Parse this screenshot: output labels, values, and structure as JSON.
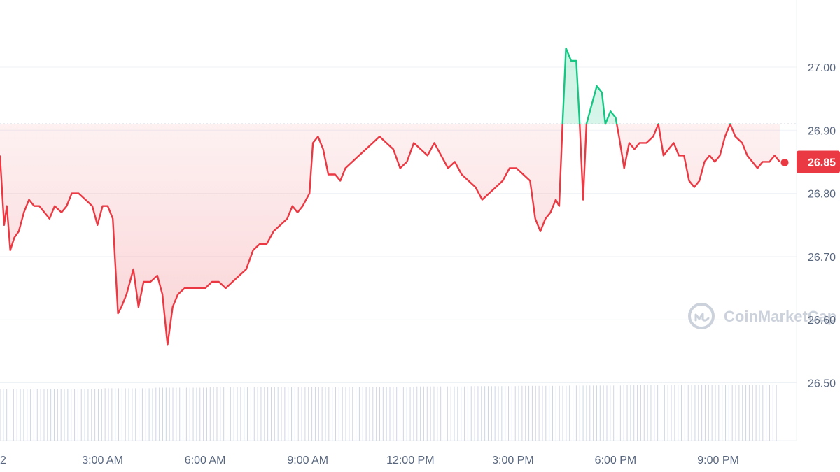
{
  "colors": {
    "down": "#ea3943",
    "up": "#16c784",
    "grid": "#eff2f5",
    "axis_text": "#58667e",
    "volume": "#cfd6e4",
    "watermark": "#ccd2db"
  },
  "watermark": {
    "text": "CoinMarketCap",
    "icon": "coinmarketcap-logo-icon"
  },
  "chart_data": {
    "type": "line",
    "title": "",
    "xlabel": "",
    "ylabel": "",
    "x_unit": "hours",
    "ylim": [
      26.4,
      27.1
    ],
    "reference_value": 26.91,
    "last_value": "26.85",
    "x_ticks": [
      {
        "x": 3,
        "label": "3:00 AM"
      },
      {
        "x": 6,
        "label": "6:00 AM"
      },
      {
        "x": 9,
        "label": "9:00 AM"
      },
      {
        "x": 12,
        "label": "12:00 PM"
      },
      {
        "x": 15,
        "label": "3:00 PM"
      },
      {
        "x": 18,
        "label": "6:00 PM"
      },
      {
        "x": 21,
        "label": "9:00 PM"
      }
    ],
    "x_edge_label": "2",
    "y_ticks": [
      "27.00",
      "26.90",
      "26.80",
      "26.70",
      "26.60",
      "26.50"
    ],
    "y_tick_values": [
      27.0,
      26.9,
      26.8,
      26.7,
      26.6,
      26.5
    ],
    "series": [
      {
        "points": [
          [
            0.0,
            26.86
          ],
          [
            0.12,
            26.75
          ],
          [
            0.2,
            26.78
          ],
          [
            0.3,
            26.71
          ],
          [
            0.42,
            26.73
          ],
          [
            0.55,
            26.74
          ],
          [
            0.7,
            26.77
          ],
          [
            0.85,
            26.79
          ],
          [
            1.0,
            26.78
          ],
          [
            1.15,
            26.78
          ],
          [
            1.3,
            26.77
          ],
          [
            1.45,
            26.76
          ],
          [
            1.6,
            26.78
          ],
          [
            1.8,
            26.77
          ],
          [
            1.95,
            26.78
          ],
          [
            2.1,
            26.8
          ],
          [
            2.3,
            26.8
          ],
          [
            2.5,
            26.79
          ],
          [
            2.7,
            26.78
          ],
          [
            2.85,
            26.75
          ],
          [
            3.0,
            26.78
          ],
          [
            3.15,
            26.78
          ],
          [
            3.3,
            26.76
          ],
          [
            3.45,
            26.61
          ],
          [
            3.55,
            26.62
          ],
          [
            3.7,
            26.64
          ],
          [
            3.9,
            26.68
          ],
          [
            4.05,
            26.62
          ],
          [
            4.2,
            26.66
          ],
          [
            4.4,
            26.66
          ],
          [
            4.6,
            26.67
          ],
          [
            4.75,
            26.64
          ],
          [
            4.9,
            26.56
          ],
          [
            5.05,
            26.62
          ],
          [
            5.2,
            26.64
          ],
          [
            5.4,
            26.65
          ],
          [
            5.6,
            26.65
          ],
          [
            5.8,
            26.65
          ],
          [
            6.0,
            26.65
          ],
          [
            6.2,
            26.66
          ],
          [
            6.4,
            26.66
          ],
          [
            6.6,
            26.65
          ],
          [
            6.8,
            26.66
          ],
          [
            7.0,
            26.67
          ],
          [
            7.2,
            26.68
          ],
          [
            7.4,
            26.71
          ],
          [
            7.6,
            26.72
          ],
          [
            7.8,
            26.72
          ],
          [
            8.0,
            26.74
          ],
          [
            8.2,
            26.75
          ],
          [
            8.4,
            26.76
          ],
          [
            8.55,
            26.78
          ],
          [
            8.7,
            26.77
          ],
          [
            8.85,
            26.78
          ],
          [
            9.05,
            26.8
          ],
          [
            9.15,
            26.88
          ],
          [
            9.3,
            26.89
          ],
          [
            9.45,
            26.87
          ],
          [
            9.6,
            26.83
          ],
          [
            9.8,
            26.83
          ],
          [
            9.95,
            26.82
          ],
          [
            10.1,
            26.84
          ],
          [
            10.3,
            26.85
          ],
          [
            10.5,
            26.86
          ],
          [
            10.7,
            26.87
          ],
          [
            10.9,
            26.88
          ],
          [
            11.1,
            26.89
          ],
          [
            11.3,
            26.88
          ],
          [
            11.5,
            26.87
          ],
          [
            11.7,
            26.84
          ],
          [
            11.9,
            26.85
          ],
          [
            12.1,
            26.88
          ],
          [
            12.3,
            26.87
          ],
          [
            12.5,
            26.86
          ],
          [
            12.7,
            26.88
          ],
          [
            12.9,
            26.86
          ],
          [
            13.1,
            26.84
          ],
          [
            13.3,
            26.85
          ],
          [
            13.5,
            26.83
          ],
          [
            13.7,
            26.82
          ],
          [
            13.9,
            26.81
          ],
          [
            14.1,
            26.79
          ],
          [
            14.3,
            26.8
          ],
          [
            14.5,
            26.81
          ],
          [
            14.7,
            26.82
          ],
          [
            14.9,
            26.84
          ],
          [
            15.1,
            26.84
          ],
          [
            15.3,
            26.83
          ],
          [
            15.5,
            26.82
          ],
          [
            15.65,
            26.76
          ],
          [
            15.8,
            26.74
          ],
          [
            15.95,
            26.76
          ],
          [
            16.1,
            26.77
          ],
          [
            16.25,
            26.79
          ],
          [
            16.35,
            26.78
          ],
          [
            16.45,
            26.91
          ],
          [
            16.55,
            27.03
          ],
          [
            16.7,
            27.01
          ],
          [
            16.85,
            27.01
          ],
          [
            16.95,
            26.91
          ],
          [
            17.05,
            26.79
          ],
          [
            17.15,
            26.91
          ],
          [
            17.25,
            26.93
          ],
          [
            17.45,
            26.97
          ],
          [
            17.6,
            26.96
          ],
          [
            17.7,
            26.91
          ],
          [
            17.85,
            26.93
          ],
          [
            18.0,
            26.92
          ],
          [
            18.1,
            26.89
          ],
          [
            18.25,
            26.84
          ],
          [
            18.4,
            26.88
          ],
          [
            18.55,
            26.87
          ],
          [
            18.7,
            26.88
          ],
          [
            18.9,
            26.88
          ],
          [
            19.1,
            26.89
          ],
          [
            19.25,
            26.91
          ],
          [
            19.4,
            26.86
          ],
          [
            19.55,
            26.87
          ],
          [
            19.7,
            26.88
          ],
          [
            19.85,
            26.86
          ],
          [
            20.0,
            26.86
          ],
          [
            20.15,
            26.82
          ],
          [
            20.3,
            26.81
          ],
          [
            20.45,
            26.82
          ],
          [
            20.6,
            26.85
          ],
          [
            20.75,
            26.86
          ],
          [
            20.9,
            26.85
          ],
          [
            21.05,
            26.86
          ],
          [
            21.2,
            26.89
          ],
          [
            21.35,
            26.91
          ],
          [
            21.5,
            26.89
          ],
          [
            21.7,
            26.88
          ],
          [
            21.85,
            26.86
          ],
          [
            22.0,
            26.85
          ],
          [
            22.15,
            26.84
          ],
          [
            22.3,
            26.85
          ],
          [
            22.5,
            26.85
          ],
          [
            22.65,
            26.86
          ],
          [
            22.8,
            26.85
          ]
        ]
      }
    ],
    "volume": {
      "description": "volume bars along bottom",
      "x_start": 0.0,
      "x_end": 22.8,
      "count": 230,
      "levels": [
        0.35,
        0.36,
        0.38,
        0.4,
        0.41,
        0.42,
        0.43,
        0.43,
        0.44,
        0.45,
        0.46,
        0.47,
        0.48,
        0.49,
        0.5
      ]
    }
  }
}
